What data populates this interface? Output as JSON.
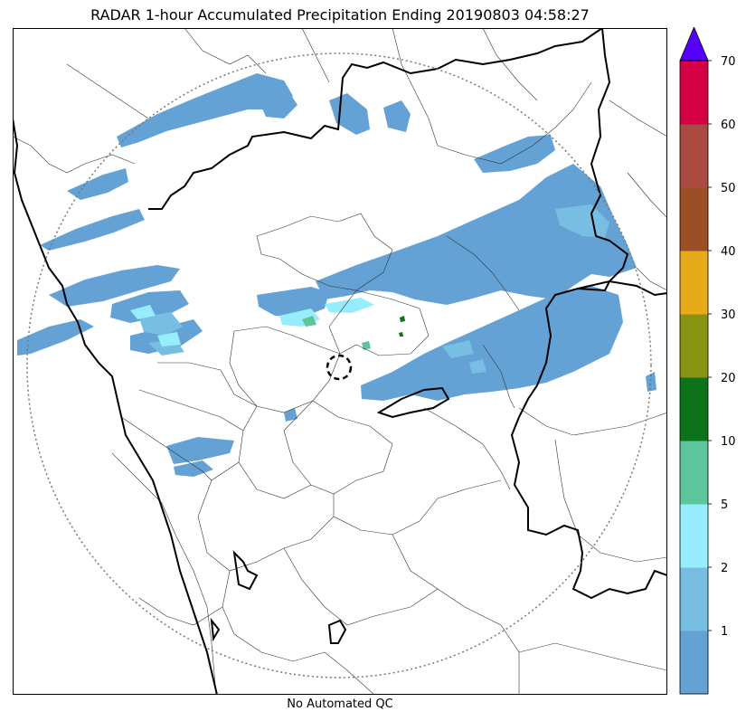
{
  "title": "RADAR 1-hour Accumulated Precipitation Ending 20190803 04:58:27",
  "footer_note": "No Automated QC",
  "colorbar": {
    "ticks": [
      "1",
      "2",
      "5",
      "10",
      "20",
      "30",
      "40",
      "50",
      "60",
      "70"
    ],
    "bins": [
      {
        "range": "0-1",
        "color": "#64a2d5"
      },
      {
        "range": "1-2",
        "color": "#78bde2"
      },
      {
        "range": "2-5",
        "color": "#95edfe"
      },
      {
        "range": "5-10",
        "color": "#5ec49b"
      },
      {
        "range": "10-20",
        "color": "#0d7318"
      },
      {
        "range": "20-30",
        "color": "#899312"
      },
      {
        "range": "30-40",
        "color": "#e8a91b"
      },
      {
        "range": "40-50",
        "color": "#9c4e27"
      },
      {
        "range": "50-60",
        "color": "#a94a43"
      },
      {
        "range": "60-70",
        "color": "#d40044"
      }
    ],
    "over_color": "#5500ff"
  }
}
